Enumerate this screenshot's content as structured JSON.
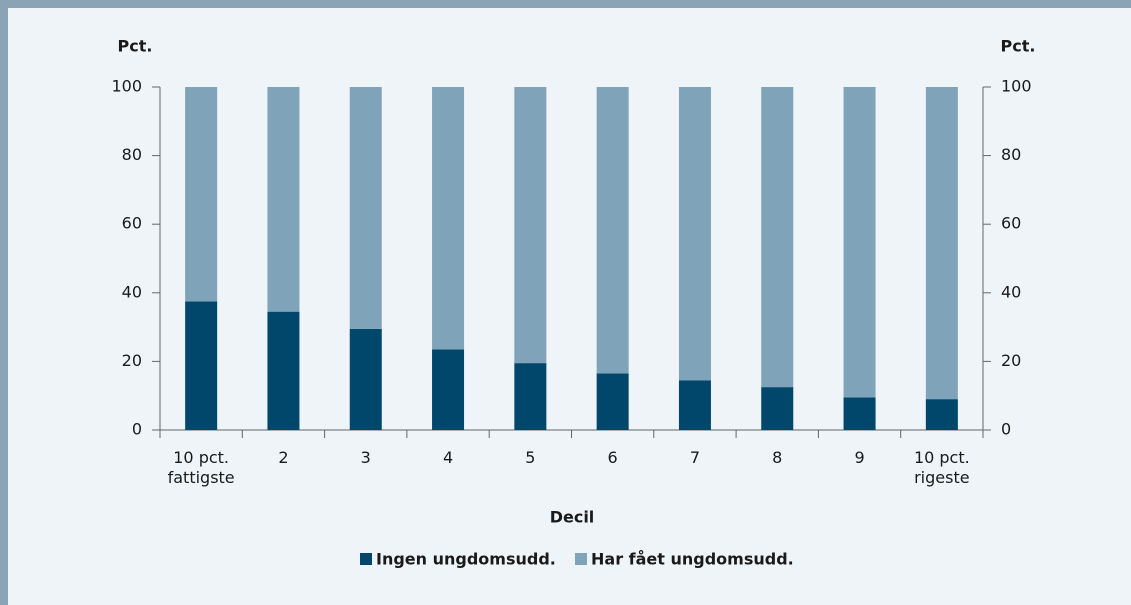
{
  "chart_data": {
    "type": "stacked_bar",
    "ylabel": "Pct.",
    "y2label": "Pct.",
    "xlabel": "Decil",
    "categories": [
      "10 pct. fattigste",
      "2",
      "3",
      "4",
      "5",
      "6",
      "7",
      "8",
      "9",
      "10 pct. rigeste"
    ],
    "series": [
      {
        "name": "Ingen ungdomsudd.",
        "color": "#00476b",
        "values": [
          37.5,
          34.5,
          29.5,
          23.5,
          19.5,
          16.5,
          14.5,
          12.5,
          9.5,
          9
        ]
      },
      {
        "name": "Har fået ungdomsudd.",
        "color": "#7fa3b8",
        "values": [
          62.5,
          65.5,
          70.5,
          76.5,
          80.5,
          83.5,
          85.5,
          87.5,
          90.5,
          91
        ]
      }
    ],
    "ylim": [
      0,
      100
    ],
    "yticks": [
      0,
      20,
      40,
      60,
      80,
      100
    ],
    "y2lim": [
      0,
      100
    ],
    "y2ticks": [
      0,
      20,
      40,
      60,
      80,
      100
    ],
    "grid": false,
    "legend": "bottom"
  }
}
